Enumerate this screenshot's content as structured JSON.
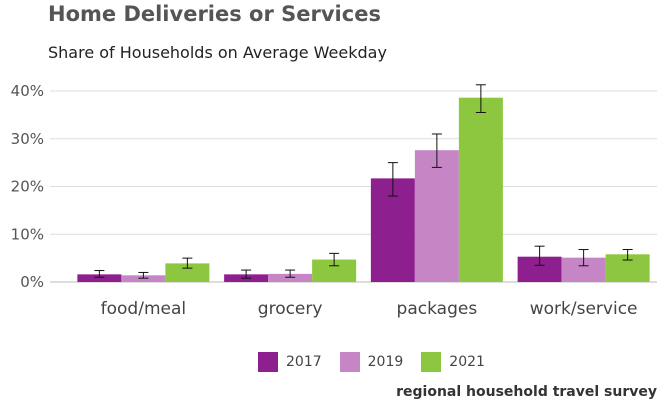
{
  "title": "Home Deliveries or Services",
  "subtitle": "Share of Households on Average Weekday",
  "source": "regional household travel survey",
  "chart_data": {
    "type": "bar",
    "categories": [
      "food/meal",
      "grocery",
      "packages",
      "work/service"
    ],
    "series": [
      {
        "name": "2017",
        "color": "#8e1f8e",
        "values": [
          1.6,
          1.6,
          21.7,
          5.3
        ],
        "error_low": [
          1.0,
          0.8,
          18.0,
          3.5
        ],
        "error_high": [
          2.4,
          2.5,
          25.0,
          7.5
        ]
      },
      {
        "name": "2019",
        "color": "#c686c6",
        "values": [
          1.4,
          1.7,
          27.6,
          5.1
        ],
        "error_low": [
          0.8,
          1.0,
          24.0,
          3.4
        ],
        "error_high": [
          2.0,
          2.5,
          31.0,
          6.8
        ]
      },
      {
        "name": "2021",
        "color": "#8dc63f",
        "values": [
          3.9,
          4.7,
          38.6,
          5.8
        ],
        "error_low": [
          2.9,
          3.4,
          35.5,
          4.6
        ],
        "error_high": [
          5.0,
          6.0,
          41.3,
          6.8
        ]
      }
    ],
    "y_ticks": [
      "0%",
      "10%",
      "20%",
      "30%",
      "40%"
    ],
    "ylim": [
      0,
      40
    ],
    "grid": true,
    "legend_position": "bottom"
  }
}
